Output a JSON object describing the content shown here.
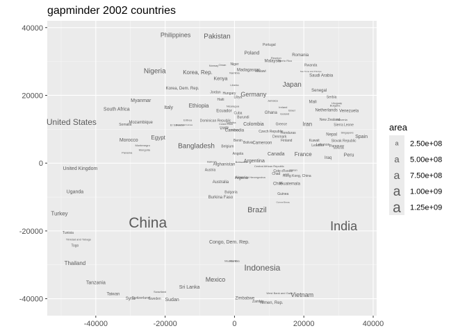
{
  "chart_data": {
    "type": "scatter",
    "title": "gapminder 2002 countries",
    "xlabel": "",
    "ylabel": "",
    "xlim": [
      -54000,
      41000
    ],
    "ylim": [
      -45000,
      42000
    ],
    "x_ticks": [
      -40000,
      -20000,
      0,
      20000,
      40000
    ],
    "y_ticks": [
      -40000,
      -20000,
      0,
      20000,
      40000
    ],
    "x_tick_labels": [
      "-40000",
      "-20000",
      "0",
      "20000",
      "40000"
    ],
    "y_tick_labels": [
      "-40000",
      "-20000",
      "0",
      "20000",
      "40000"
    ],
    "grid": true,
    "legend": {
      "title": "area",
      "position": "right",
      "entries": [
        {
          "label": "2.50e+08",
          "size": 9
        },
        {
          "label": "5.00e+08",
          "size": 13
        },
        {
          "label": "7.50e+08",
          "size": 16
        },
        {
          "label": "1.00e+09",
          "size": 19
        },
        {
          "label": "1.25e+09",
          "size": 21
        }
      ],
      "key_glyph": "a"
    },
    "points": [
      {
        "label": "China",
        "x": -25000,
        "y": -17500,
        "size": 21
      },
      {
        "label": "India",
        "x": 31500,
        "y": -18500,
        "size": 18
      },
      {
        "label": "United States",
        "x": -47000,
        "y": 12200,
        "size": 12
      },
      {
        "label": "Indonesia",
        "x": 8000,
        "y": -30800,
        "size": 12
      },
      {
        "label": "Brazil",
        "x": 6500,
        "y": -13700,
        "size": 11
      },
      {
        "label": "Pakistan",
        "x": -5000,
        "y": 37500,
        "size": 10
      },
      {
        "label": "Bangladesh",
        "x": -11000,
        "y": 5200,
        "size": 10
      },
      {
        "label": "Nigeria",
        "x": -23000,
        "y": 27300,
        "size": 10
      },
      {
        "label": "Japan",
        "x": 16600,
        "y": 23300,
        "size": 10
      },
      {
        "label": "Mexico",
        "x": -5500,
        "y": -34300,
        "size": 9
      },
      {
        "label": "Philippines",
        "x": -17000,
        "y": 37800,
        "size": 9
      },
      {
        "label": "Vietnam",
        "x": 19500,
        "y": -38800,
        "size": 9
      },
      {
        "label": "Germany",
        "x": 5500,
        "y": 20300,
        "size": 9
      },
      {
        "label": "Turkey",
        "x": -50500,
        "y": -14800,
        "size": 8
      },
      {
        "label": "Egypt",
        "x": -22000,
        "y": 7600,
        "size": 8
      },
      {
        "label": "Ethiopia",
        "x": -10300,
        "y": 17000,
        "size": 8
      },
      {
        "label": "Iran",
        "x": 21000,
        "y": 11600,
        "size": 8
      },
      {
        "label": "Thailand",
        "x": -46000,
        "y": -29500,
        "size": 8
      },
      {
        "label": "France",
        "x": 19800,
        "y": 2700,
        "size": 8
      },
      {
        "label": "United Kingdom",
        "x": -44500,
        "y": -1500,
        "size": 7
      },
      {
        "label": "Italy",
        "x": -19000,
        "y": 16500,
        "size": 7
      },
      {
        "label": "Congo, Dem. Rep.",
        "x": -1500,
        "y": -23200,
        "size": 7
      },
      {
        "label": "Myanmar",
        "x": -27000,
        "y": 18500,
        "size": 7
      },
      {
        "label": "Korea, Rep.",
        "x": -10600,
        "y": 26800,
        "size": 8
      },
      {
        "label": "Poland",
        "x": 5000,
        "y": 32600,
        "size": 7
      },
      {
        "label": "Colombia",
        "x": 5500,
        "y": 11600,
        "size": 7
      },
      {
        "label": "Spain",
        "x": 36600,
        "y": 7900,
        "size": 7
      },
      {
        "label": "South Africa",
        "x": -34000,
        "y": 16000,
        "size": 7
      },
      {
        "label": "Sri Lanka",
        "x": -13000,
        "y": -36500,
        "size": 7
      },
      {
        "label": "Sudan",
        "x": -18000,
        "y": -40200,
        "size": 7
      },
      {
        "label": "Tanzania",
        "x": -40000,
        "y": -35200,
        "size": 7
      },
      {
        "label": "Kenya",
        "x": -4000,
        "y": 25000,
        "size": 7
      },
      {
        "label": "Morocco",
        "x": -30500,
        "y": 6900,
        "size": 7
      },
      {
        "label": "Argentina",
        "x": 5700,
        "y": 700,
        "size": 7
      },
      {
        "label": "Canada",
        "x": 12000,
        "y": 2800,
        "size": 7
      },
      {
        "label": "Uganda",
        "x": -46000,
        "y": -8400,
        "size": 7
      },
      {
        "label": "Peru",
        "x": 33000,
        "y": 2500,
        "size": 7
      },
      {
        "label": "Malaysia",
        "x": 11000,
        "y": 30300,
        "size": 6
      },
      {
        "label": "Romania",
        "x": 19000,
        "y": 32000,
        "size": 6
      },
      {
        "label": "Portugal",
        "x": 10000,
        "y": 35000,
        "size": 5
      },
      {
        "label": "Saudi Arabia",
        "x": 25000,
        "y": 26000,
        "size": 6
      },
      {
        "label": "Madagascar",
        "x": 4000,
        "y": 27600,
        "size": 6
      },
      {
        "label": "Korea, Dem. Rep.",
        "x": -15000,
        "y": 22200,
        "size": 6
      },
      {
        "label": "Australia",
        "x": -4000,
        "y": -5500,
        "size": 6
      },
      {
        "label": "Chile",
        "x": 12500,
        "y": -6000,
        "size": 6
      },
      {
        "label": "Guatemala",
        "x": 16000,
        "y": -6000,
        "size": 6
      },
      {
        "label": "Cameroon",
        "x": 8000,
        "y": 6100,
        "size": 6
      },
      {
        "label": "Mozambique",
        "x": -27000,
        "y": 12100,
        "size": 6
      },
      {
        "label": "Ghana",
        "x": 10500,
        "y": 15000,
        "size": 6
      },
      {
        "label": "Netherlands",
        "x": 26500,
        "y": 15700,
        "size": 6
      },
      {
        "label": "Venezuela",
        "x": 33000,
        "y": 15500,
        "size": 6
      },
      {
        "label": "Nepal",
        "x": 28000,
        "y": 8600,
        "size": 6
      },
      {
        "label": "Iraq",
        "x": 27000,
        "y": 1700,
        "size": 6
      },
      {
        "label": "Afghanistan",
        "x": -3000,
        "y": -300,
        "size": 6
      },
      {
        "label": "Cote d'Ivoire",
        "x": 14000,
        "y": -2300,
        "size": 5
      },
      {
        "label": "Ecuador",
        "x": -3000,
        "y": 15500,
        "size": 6
      },
      {
        "label": "Hong Kong, China",
        "x": 18000,
        "y": -3700,
        "size": 5
      },
      {
        "label": "Angola",
        "x": 1000,
        "y": 2900,
        "size": 5
      },
      {
        "label": "Algeria",
        "x": 2000,
        "y": -4200,
        "size": 6
      },
      {
        "label": "Mali",
        "x": 22600,
        "y": 18200,
        "size": 6
      },
      {
        "label": "Senegal",
        "x": 24400,
        "y": 21500,
        "size": 6
      },
      {
        "label": "Yemen, Rep.",
        "x": 10600,
        "y": -41100,
        "size": 6
      },
      {
        "label": "Zimbabwe",
        "x": 3000,
        "y": -39800,
        "size": 6
      },
      {
        "label": "Zambia",
        "x": 6800,
        "y": -40800,
        "size": 5
      },
      {
        "label": "Cuba",
        "x": 1000,
        "y": 14800,
        "size": 5
      },
      {
        "label": "Taiwan",
        "x": -35000,
        "y": -38500,
        "size": 6
      },
      {
        "label": "Syria",
        "x": -30000,
        "y": -39900,
        "size": 6
      },
      {
        "label": "Switzerland",
        "x": -27000,
        "y": -39700,
        "size": 5
      },
      {
        "label": "Sweden",
        "x": -23000,
        "y": -39900,
        "size": 5
      },
      {
        "label": "Swaziland",
        "x": -21500,
        "y": -38000,
        "size": 4
      },
      {
        "label": "Tunisia",
        "x": -48000,
        "y": -20500,
        "size": 5
      },
      {
        "label": "Trinidad and Tobago",
        "x": -45000,
        "y": -22500,
        "size": 4
      },
      {
        "label": "Togo",
        "x": -46000,
        "y": -24300,
        "size": 5
      },
      {
        "label": "Mauritania",
        "x": -1000,
        "y": -28800,
        "size": 4
      },
      {
        "label": "Namibia",
        "x": 0,
        "y": -28800,
        "size": 4
      },
      {
        "label": "West Bank and Gaza",
        "x": 13000,
        "y": -38400,
        "size": 4
      },
      {
        "label": "Burkina Faso",
        "x": -4000,
        "y": -10000,
        "size": 6
      },
      {
        "label": "Bulgaria",
        "x": -1000,
        "y": -8500,
        "size": 5
      },
      {
        "label": "Cambodia",
        "x": 0,
        "y": 9800,
        "size": 6
      },
      {
        "label": "Czech Republic",
        "x": 10500,
        "y": 9400,
        "size": 5
      },
      {
        "label": "Honduras",
        "x": 15500,
        "y": 9000,
        "size": 5
      },
      {
        "label": "Denmark",
        "x": 13000,
        "y": 7900,
        "size": 5
      },
      {
        "label": "Finland",
        "x": 15000,
        "y": 6700,
        "size": 5
      },
      {
        "label": "Greece",
        "x": 13500,
        "y": 11500,
        "size": 5
      },
      {
        "label": "Chad",
        "x": 12000,
        "y": -3100,
        "size": 5
      },
      {
        "label": "Benin",
        "x": 1000,
        "y": 6700,
        "size": 5
      },
      {
        "label": "Bolivia",
        "x": 4000,
        "y": 6100,
        "size": 5
      },
      {
        "label": "Belgium",
        "x": -2000,
        "y": 5000,
        "size": 5
      },
      {
        "label": "Burundi",
        "x": 2500,
        "y": 13600,
        "size": 5
      },
      {
        "label": "Hungary",
        "x": -1500,
        "y": 20700,
        "size": 5
      },
      {
        "label": "Jordan",
        "x": -5500,
        "y": 21000,
        "size": 5
      },
      {
        "label": "Jamaica",
        "x": 11000,
        "y": 18400,
        "size": 4
      },
      {
        "label": "Israel",
        "x": 16500,
        "y": 15600,
        "size": 4
      },
      {
        "label": "Iceland",
        "x": 14500,
        "y": 14500,
        "size": 4
      },
      {
        "label": "Haiti",
        "x": -4000,
        "y": 18800,
        "size": 5
      },
      {
        "label": "Guinea",
        "x": 14000,
        "y": -9000,
        "size": 5
      },
      {
        "label": "Guinea-Bissau",
        "x": 14000,
        "y": -11500,
        "size": 3
      },
      {
        "label": "Kuwait",
        "x": 23000,
        "y": 6700,
        "size": 5
      },
      {
        "label": "Lebanon",
        "x": 25500,
        "y": 5500,
        "size": 5
      },
      {
        "label": "Lesotho",
        "x": 24000,
        "y": 5300,
        "size": 5
      },
      {
        "label": "Paraguay",
        "x": 29500,
        "y": 5100,
        "size": 5
      },
      {
        "label": "Slovak Republic",
        "x": 31500,
        "y": 6600,
        "size": 5
      },
      {
        "label": "Singapore",
        "x": 32500,
        "y": 9000,
        "size": 4
      },
      {
        "label": "Sierra Leone",
        "x": 31500,
        "y": 11300,
        "size": 5
      },
      {
        "label": "Slovenia",
        "x": 31000,
        "y": 12800,
        "size": 4
      },
      {
        "label": "New Zealand",
        "x": 27500,
        "y": 12900,
        "size": 5
      },
      {
        "label": "Uruguay",
        "x": 29500,
        "y": 17700,
        "size": 4
      },
      {
        "label": "Serbia",
        "x": 28000,
        "y": 19500,
        "size": 5
      },
      {
        "label": "Somalia",
        "x": -31500,
        "y": 11400,
        "size": 5
      },
      {
        "label": "Montenegro",
        "x": -26500,
        "y": 5200,
        "size": 4
      },
      {
        "label": "Mongolia",
        "x": -26000,
        "y": 3900,
        "size": 4
      },
      {
        "label": "Panama",
        "x": -31000,
        "y": 3100,
        "size": 4
      },
      {
        "label": "Eritrea",
        "x": -13500,
        "y": 12700,
        "size": 4
      },
      {
        "label": "El Salvador",
        "x": -16500,
        "y": 11300,
        "size": 4
      },
      {
        "label": "Equatorial Guinea",
        "x": -14500,
        "y": 11300,
        "size": 3
      },
      {
        "label": "Dominican Republic",
        "x": -5500,
        "y": 12600,
        "size": 5
      },
      {
        "label": "Costa Rica",
        "x": -2500,
        "y": 11600,
        "size": 4
      },
      {
        "label": "Croatia",
        "x": -3000,
        "y": 10700,
        "size": 4
      },
      {
        "label": "Bosnia and Herzegovina",
        "x": 4500,
        "y": -4200,
        "size": 4
      },
      {
        "label": "Austria",
        "x": -7000,
        "y": -2000,
        "size": 5
      },
      {
        "label": "Bahrain",
        "x": -6500,
        "y": 400,
        "size": 4
      },
      {
        "label": "Botswana",
        "x": 2000,
        "y": 300,
        "size": 4
      },
      {
        "label": "Central African Republic",
        "x": 10000,
        "y": -900,
        "size": 4
      },
      {
        "label": "Oman",
        "x": 17000,
        "y": -2000,
        "size": 4
      },
      {
        "label": "Haiti",
        "x": 15000,
        "y": -3300,
        "size": 4
      },
      {
        "label": "Malawi",
        "x": 7500,
        "y": 27200,
        "size": 5
      },
      {
        "label": "Rwanda",
        "x": 22000,
        "y": 29000,
        "size": 5
      },
      {
        "label": "Sao Tome and Principe",
        "x": 22000,
        "y": 27100,
        "size": 3
      },
      {
        "label": "Niger",
        "x": 0,
        "y": 29300,
        "size": 5
      },
      {
        "label": "Oman",
        "x": -3500,
        "y": 29000,
        "size": 4
      },
      {
        "label": "Norway",
        "x": -6000,
        "y": 28800,
        "size": 4
      },
      {
        "label": "Namibia",
        "x": 0,
        "y": 26600,
        "size": 4
      },
      {
        "label": "Liberia",
        "x": 0,
        "y": 23000,
        "size": 4
      },
      {
        "label": "Libya",
        "x": 1000,
        "y": 19500,
        "size": 5
      },
      {
        "label": "Nicaragua",
        "x": -500,
        "y": 16800,
        "size": 4
      },
      {
        "label": "Gambia",
        "x": -1000,
        "y": 12000,
        "size": 4
      },
      {
        "label": "Gabon",
        "x": 0,
        "y": 9800,
        "size": 4
      },
      {
        "label": "Eritrea",
        "x": -3000,
        "y": 10200,
        "size": 4
      },
      {
        "label": "Ireland",
        "x": 14000,
        "y": 16500,
        "size": 4
      },
      {
        "label": "Reunion",
        "x": 12000,
        "y": 31000,
        "size": 4
      },
      {
        "label": "Puerto Rico",
        "x": 14500,
        "y": 30200,
        "size": 4
      },
      {
        "label": "Bulgaria",
        "x": 29000,
        "y": 17000,
        "size": 4
      },
      {
        "label": "Slovenia",
        "x": 30000,
        "y": 4500,
        "size": 4
      }
    ]
  }
}
